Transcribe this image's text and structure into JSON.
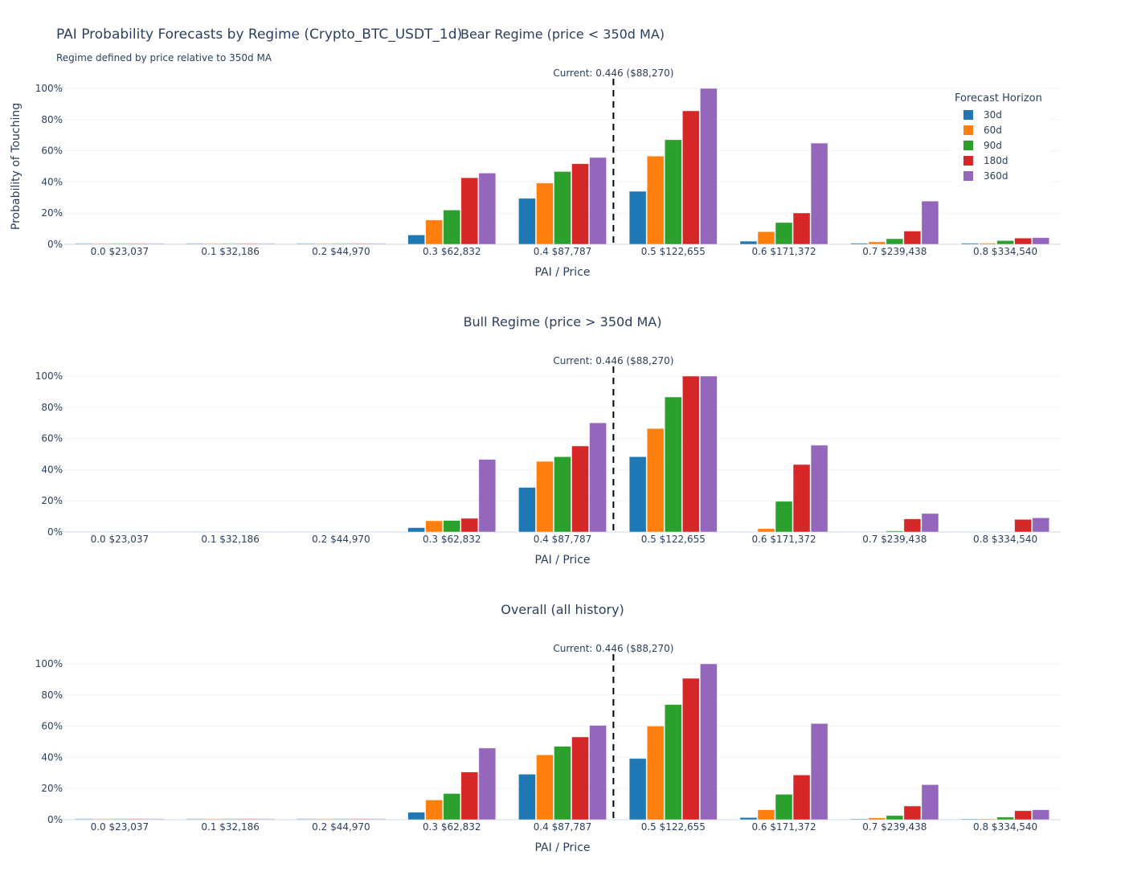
{
  "title": "PAI Probability Forecasts by Regime (Crypto_BTC_USDT_1d)",
  "subtitle": "Regime defined by price relative to 350d MA",
  "legend": {
    "title": "Forecast Horizon",
    "items": [
      {
        "label": "30d",
        "color": "#1f77b4"
      },
      {
        "label": "60d",
        "color": "#ff7f0e"
      },
      {
        "label": "90d",
        "color": "#2ca02c"
      },
      {
        "label": "180d",
        "color": "#d62728"
      },
      {
        "label": "360d",
        "color": "#9467bd"
      }
    ]
  },
  "chart_data": [
    {
      "type": "bar",
      "title": "Bear Regime (price < 350d MA)",
      "xlabel": "PAI / Price",
      "ylabel": "Probability of Touching",
      "ylim": [
        0,
        100
      ],
      "yticks": [
        "0%",
        "20%",
        "40%",
        "60%",
        "80%",
        "100%"
      ],
      "grid": true,
      "legend_placement": "top-right",
      "categories": [
        "0.0 $23,037",
        "0.1 $32,186",
        "0.2 $44,970",
        "0.3 $62,832",
        "0.4 $87,787",
        "0.5 $122,655",
        "0.6 $171,372",
        "0.7 $239,438",
        "0.8 $334,540"
      ],
      "current_marker": {
        "x": 0.446,
        "label": "Current: 0.446 ($88,270)"
      },
      "series": [
        {
          "name": "30d",
          "values": [
            0,
            0,
            0,
            6,
            29.5,
            34,
            2,
            0.7,
            0.7
          ]
        },
        {
          "name": "60d",
          "values": [
            0,
            0,
            0,
            15.6,
            39.3,
            56.6,
            8.1,
            1.6,
            0.7
          ]
        },
        {
          "name": "90d",
          "values": [
            0,
            0,
            0,
            22,
            46.7,
            67.1,
            14,
            3.6,
            2.4
          ]
        },
        {
          "name": "180d",
          "values": [
            0,
            0,
            0,
            42.7,
            51.7,
            85.6,
            20.1,
            8.5,
            4
          ]
        },
        {
          "name": "360d",
          "values": [
            0,
            0,
            0,
            45.7,
            55.7,
            100,
            64.9,
            27.7,
            4.3
          ]
        }
      ]
    },
    {
      "type": "bar",
      "title": "Bull Regime (price > 350d MA)",
      "xlabel": "PAI / Price",
      "ylabel": "",
      "ylim": [
        0,
        100
      ],
      "yticks": [
        "0%",
        "20%",
        "40%",
        "60%",
        "80%",
        "100%"
      ],
      "grid": true,
      "categories": [
        "0.0 $23,037",
        "0.1 $32,186",
        "0.2 $44,970",
        "0.3 $62,832",
        "0.4 $87,787",
        "0.5 $122,655",
        "0.6 $171,372",
        "0.7 $239,438",
        "0.8 $334,540"
      ],
      "current_marker": {
        "x": 0.446,
        "label": "Current: 0.446 ($88,270)"
      },
      "series": [
        {
          "name": "30d",
          "values": [
            null,
            null,
            null,
            2.8,
            28.6,
            48.3,
            null,
            null,
            null
          ]
        },
        {
          "name": "60d",
          "values": [
            null,
            null,
            null,
            7.2,
            45.3,
            66.4,
            2.2,
            null,
            null
          ]
        },
        {
          "name": "90d",
          "values": [
            null,
            null,
            null,
            7.4,
            48.3,
            86.6,
            19.7,
            0.7,
            null
          ]
        },
        {
          "name": "180d",
          "values": [
            null,
            null,
            null,
            8.8,
            55.2,
            100,
            43.3,
            8.4,
            8.1
          ]
        },
        {
          "name": "360d",
          "values": [
            null,
            null,
            null,
            46.6,
            70,
            100,
            55.7,
            11.9,
            9.1
          ]
        }
      ]
    },
    {
      "type": "bar",
      "title": "Overall (all history)",
      "xlabel": "PAI / Price",
      "ylabel": "",
      "ylim": [
        0,
        100
      ],
      "yticks": [
        "0%",
        "20%",
        "40%",
        "60%",
        "80%",
        "100%"
      ],
      "grid": true,
      "categories": [
        "0.0 $23,037",
        "0.1 $32,186",
        "0.2 $44,970",
        "0.3 $62,832",
        "0.4 $87,787",
        "0.5 $122,655",
        "0.6 $171,372",
        "0.7 $239,438",
        "0.8 $334,540"
      ],
      "current_marker": {
        "x": 0.446,
        "label": "Current: 0.446 ($88,270)"
      },
      "series": [
        {
          "name": "30d",
          "values": [
            0,
            0,
            0,
            4.8,
            29.2,
            39.3,
            1.4,
            0.5,
            0.5
          ]
        },
        {
          "name": "60d",
          "values": [
            0,
            0,
            0,
            12.7,
            41.6,
            60.1,
            6.4,
            1.2,
            0.5
          ]
        },
        {
          "name": "90d",
          "values": [
            0,
            0,
            0,
            16.8,
            47.1,
            73.9,
            16.3,
            2.7,
            1.7
          ]
        },
        {
          "name": "180d",
          "values": [
            0,
            0,
            0,
            30.6,
            53.1,
            90.7,
            28.7,
            8.8,
            5.8
          ]
        },
        {
          "name": "360d",
          "values": [
            0,
            0,
            0,
            46,
            60.5,
            100,
            61.7,
            22.5,
            6.4
          ]
        }
      ]
    }
  ]
}
